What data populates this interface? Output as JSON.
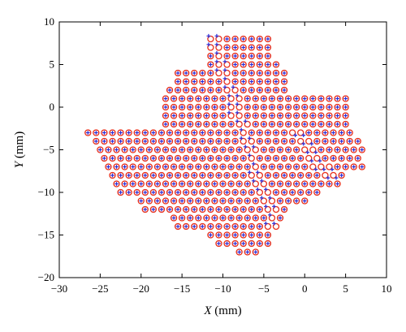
{
  "chart_data": {
    "type": "scatter",
    "title": "",
    "xlabel": "X (mm)",
    "xlabel_var": "X",
    "xlabel_unit": " (mm)",
    "ylabel": "Y (mm)",
    "ylabel_var": "Y",
    "ylabel_unit": " (mm)",
    "xlim": [
      -30,
      10
    ],
    "ylim": [
      -20,
      10
    ],
    "xticks": [
      -30,
      -25,
      -20,
      -15,
      -10,
      -5,
      0,
      5,
      10
    ],
    "yticks": [
      -20,
      -15,
      -10,
      -5,
      0,
      5,
      10
    ],
    "grid": false,
    "legend": "none",
    "colors": {
      "circle": "#e8301c",
      "cross": "#2b2bd6"
    },
    "series": [
      {
        "marker": "open-circle",
        "color": "#e8301c",
        "grid_spacing": 1.0,
        "rows": [
          {
            "y": 8,
            "x": [
              -11.5,
              -4
            ]
          },
          {
            "y": 7,
            "x": [
              -11.5,
              -4
            ]
          },
          {
            "y": 6,
            "x": [
              -11.5,
              -4
            ]
          },
          {
            "y": 5,
            "x": [
              -11.5,
              -3
            ]
          },
          {
            "y": 4,
            "x": [
              -15.5,
              -2.5
            ]
          },
          {
            "y": 3,
            "x": [
              -15.5,
              -2.5
            ]
          },
          {
            "y": 2,
            "x": [
              -16.5,
              -2
            ]
          },
          {
            "y": 1,
            "x": [
              -17,
              5
            ]
          },
          {
            "y": 0,
            "x": [
              -17,
              5
            ]
          },
          {
            "y": -1,
            "x": [
              -17,
              5
            ]
          },
          {
            "y": -2,
            "x": [
              -17,
              5.5
            ]
          },
          {
            "y": -3,
            "x": [
              -26.5,
              6
            ]
          },
          {
            "y": -4,
            "x": [
              -25.5,
              6.5
            ]
          },
          {
            "y": -5,
            "x": [
              -25,
              7
            ]
          },
          {
            "y": -6,
            "x": [
              -24.5,
              7
            ]
          },
          {
            "y": -7,
            "x": [
              -24,
              7.5
            ]
          },
          {
            "y": -8,
            "x": [
              -23.5,
              5
            ]
          },
          {
            "y": -9,
            "x": [
              -23,
              4
            ]
          },
          {
            "y": -10,
            "x": [
              -22.5,
              2
            ]
          },
          {
            "y": -11,
            "x": [
              -20,
              0
            ]
          },
          {
            "y": -12,
            "x": [
              -19.5,
              -2
            ]
          },
          {
            "y": -13,
            "x": [
              -16,
              -3
            ]
          },
          {
            "y": -14,
            "x": [
              -15.5,
              -3.5
            ]
          },
          {
            "y": -15,
            "x": [
              -11.5,
              -4
            ]
          },
          {
            "y": -16,
            "x": [
              -10.5,
              -4
            ]
          },
          {
            "y": -17,
            "x": [
              -8,
              -6
            ]
          }
        ]
      },
      {
        "marker": "cross",
        "color": "#2b2bd6",
        "description": "Crosses coincide with circle centres; the dense rows are displaced along two diagonal slip bands"
      }
    ]
  }
}
